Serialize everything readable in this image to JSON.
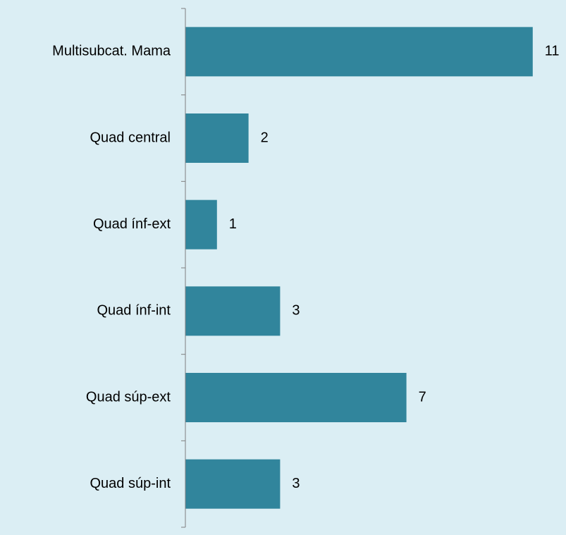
{
  "chart_data": {
    "type": "barh",
    "categories": [
      "Multisubcat. Mama",
      "Quad central",
      "Quad ínf-ext",
      "Quad ínf-int",
      "Quad súp-ext",
      "Quad súp-int"
    ],
    "values": [
      11,
      2,
      1,
      3,
      7,
      3
    ],
    "color": "#31859c"
  }
}
